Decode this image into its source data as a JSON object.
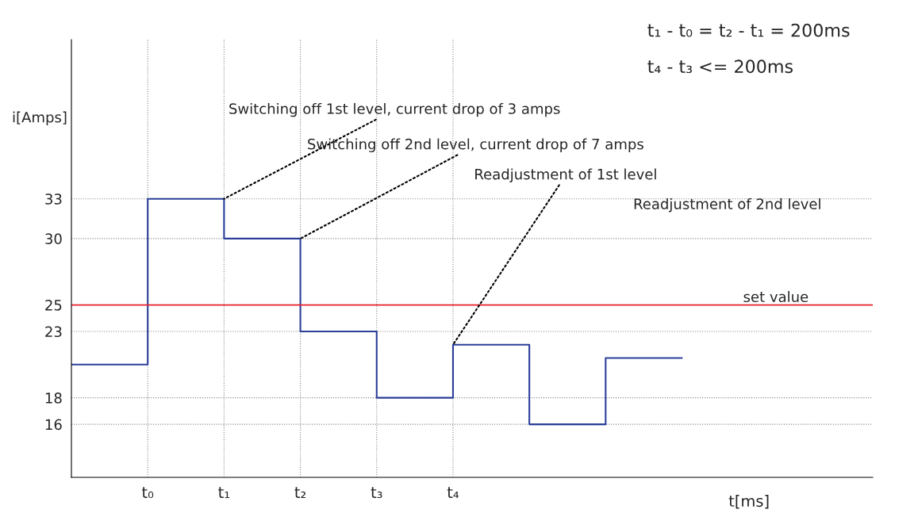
{
  "chart_data": {
    "type": "step",
    "xlabel": "t[ms]",
    "ylabel": "i[Amps]",
    "categories": [
      null,
      "t₀",
      "t₁",
      "t₂",
      "t₃",
      "t₄",
      null,
      null,
      null
    ],
    "series": [
      {
        "color": "#2b3f99",
        "values": [
          20.5,
          33,
          30,
          23,
          18,
          22,
          16,
          21,
          21
        ]
      }
    ],
    "ylim": [
      12,
      45
    ],
    "yticks": [
      16,
      18,
      23,
      25,
      30,
      33
    ],
    "grid": true,
    "line_style": "solid",
    "ref_lines": [
      {
        "axis": "y",
        "value": 25,
        "label": "set value",
        "color": "#e8202a"
      }
    ],
    "annotations": [
      {
        "text": "Switching off 1st level, current drop of 3 amps",
        "x": "t₁",
        "y": 33
      },
      {
        "text": "Switching off 2nd level, current drop of 7 amps",
        "x": "t₂",
        "y": 30
      },
      {
        "text": "Readjustment of 1st level",
        "x": "t₄",
        "y": 22
      },
      "Readjustment of 2nd level",
      "t₁ - t₀ = t₂ - t₁ = 200ms",
      "t₄ - t₃ <= 200ms"
    ]
  }
}
